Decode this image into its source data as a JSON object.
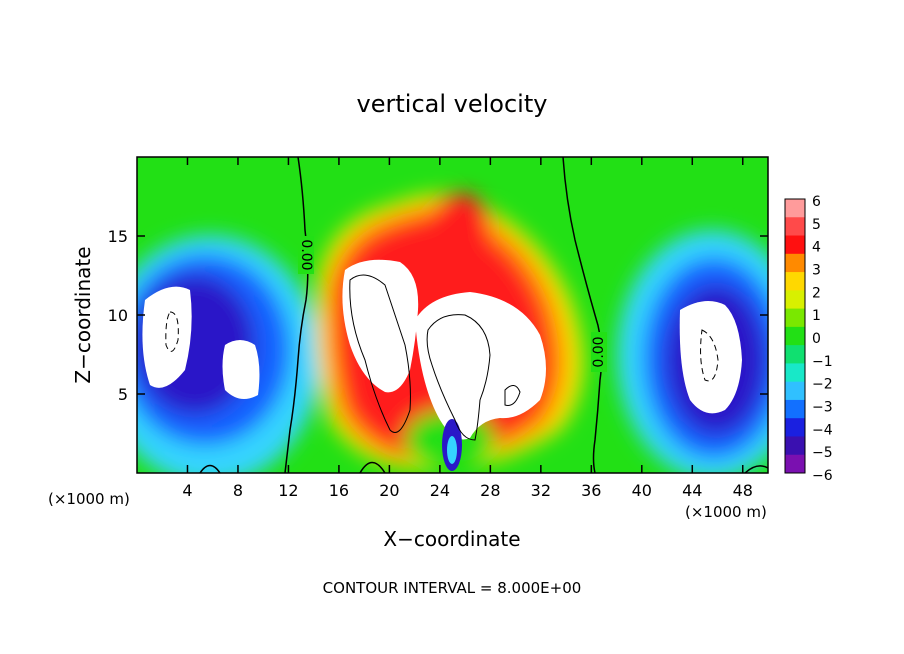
{
  "chart_data": {
    "type": "heatmap",
    "title": "vertical velocity",
    "xlabel": "X−coordinate",
    "ylabel": "Z−coordinate",
    "x_units_left": "(×1000 m)",
    "x_units_right": "(×1000 m)",
    "footer": "CONTOUR INTERVAL = 8.000E+00",
    "xlim": [
      0,
      50
    ],
    "ylim": [
      0,
      20
    ],
    "x_ticks": [
      4,
      8,
      12,
      16,
      20,
      24,
      28,
      32,
      36,
      40,
      44,
      48
    ],
    "y_ticks": [
      5,
      10,
      15
    ],
    "colorbar": {
      "levels": [
        -6,
        -5,
        -4,
        -3,
        -2,
        -1,
        0,
        1,
        2,
        3,
        4,
        5,
        6
      ],
      "labels": [
        "6",
        "5",
        "4",
        "3",
        "2",
        "1",
        "0",
        "−1",
        "−2",
        "−3",
        "−4",
        "−5",
        "−6"
      ]
    },
    "contour_labels": [
      "0.00",
      "0.00"
    ],
    "features": [
      {
        "x": 21,
        "z": 10,
        "w": 8,
        "kind": "updraft"
      },
      {
        "x": 29,
        "z": 9,
        "w": 8,
        "kind": "updraft"
      },
      {
        "x": 25,
        "z": 16,
        "w": 4,
        "kind": "updraft"
      },
      {
        "x": 3,
        "z": 8,
        "w": -8,
        "kind": "downdraft"
      },
      {
        "x": 8,
        "z": 7,
        "w": -6,
        "kind": "downdraft"
      },
      {
        "x": 46,
        "z": 7,
        "w": -8,
        "kind": "downdraft"
      },
      {
        "x": 25,
        "z": 1.5,
        "w": -5,
        "kind": "downdraft"
      }
    ]
  }
}
